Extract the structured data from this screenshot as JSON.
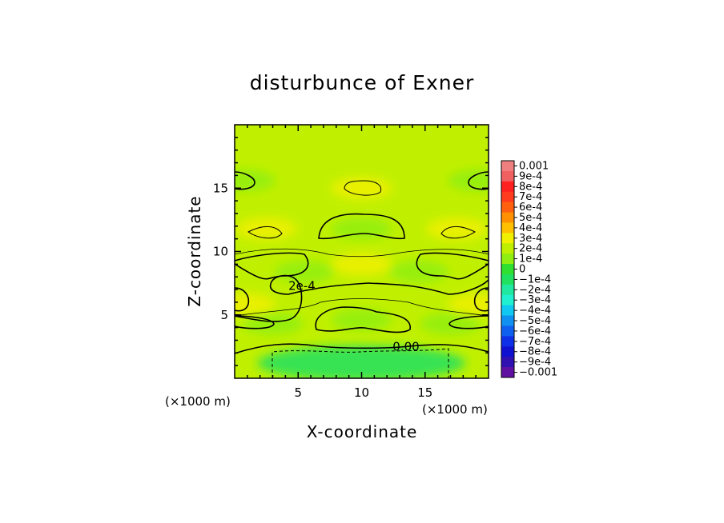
{
  "chart_data": {
    "type": "heatmap",
    "title": "disturbunce of Exner",
    "xlabel": "X-coordinate",
    "ylabel": "Z-coordinate",
    "x_unit": "(×1000 m)",
    "z_unit": "(×1000 m)",
    "xlim": [
      0,
      20
    ],
    "ylim": [
      0,
      20
    ],
    "x_ticks": [
      5,
      10,
      15
    ],
    "y_ticks": [
      5,
      10,
      15
    ],
    "contour_labels": [
      {
        "text": "2e-4",
        "x": 5.3,
        "z": 7.3
      },
      {
        "text": "0.00",
        "x": 13.5,
        "z": 2.5
      }
    ],
    "colorbar": {
      "levels": [
        0.001,
        0.0009,
        0.0008,
        0.0007,
        0.0006,
        0.0005,
        0.0004,
        0.0003,
        0.0002,
        0.0001,
        0,
        -0.0001,
        -0.0002,
        -0.0003,
        -0.0004,
        -0.0005,
        -0.0006,
        -0.0007,
        -0.0008,
        -0.0009,
        -0.001
      ],
      "labels": [
        "0.001",
        "9e-4",
        "8e-4",
        "7e-4",
        "6e-4",
        "5e-4",
        "4e-4",
        "3e-4",
        "2e-4",
        "1e-4",
        "0",
        "−1e-4",
        "−2e-4",
        "−3e-4",
        "−4e-4",
        "−5e-4",
        "−6e-4",
        "−7e-4",
        "−8e-4",
        "−9e-4",
        "−0.001"
      ],
      "colors": [
        "#f08080",
        "#f06060",
        "#ff2020",
        "#ff3c1e",
        "#ff6010",
        "#ff9000",
        "#ffc000",
        "#f0f000",
        "#c0f000",
        "#90ee10",
        "#30e030",
        "#20e060",
        "#20e8a0",
        "#20f0d0",
        "#10c8f0",
        "#1090f0",
        "#1060f0",
        "#1030e8",
        "#1010d0",
        "#3010b0",
        "#6010a0"
      ]
    },
    "field": {
      "background_level": 0.00021,
      "features": [
        {
          "x": 10,
          "z": 15,
          "value": 0.00029
        },
        {
          "x": 10,
          "z": 11.8,
          "value": 0.00013
        },
        {
          "x": 10,
          "z": 9.0,
          "value": 0.00031
        },
        {
          "x": 10,
          "z": 4.6,
          "value": 0.00013
        },
        {
          "x": 5.5,
          "z": 8.4,
          "value": 0.00013
        },
        {
          "x": 14.5,
          "z": 8.4,
          "value": 0.00013
        },
        {
          "x": 2.5,
          "z": 11.8,
          "value": 0.00031
        },
        {
          "x": 17.5,
          "z": 11.8,
          "value": 0.00031
        },
        {
          "x": 0.8,
          "z": 15.6,
          "value": 0.00013
        },
        {
          "x": 19.2,
          "z": 15.6,
          "value": 0.00013
        },
        {
          "x": 0.8,
          "z": 5.8,
          "value": 0.00031
        },
        {
          "x": 19.2,
          "z": 5.8,
          "value": 0.00031
        },
        {
          "x": 3.0,
          "z": 4.3,
          "value": 0.00013
        },
        {
          "x": 17.0,
          "z": 4.3,
          "value": 0.00013
        },
        {
          "x": 10,
          "z": 1.2,
          "value": -8e-05
        }
      ]
    }
  }
}
